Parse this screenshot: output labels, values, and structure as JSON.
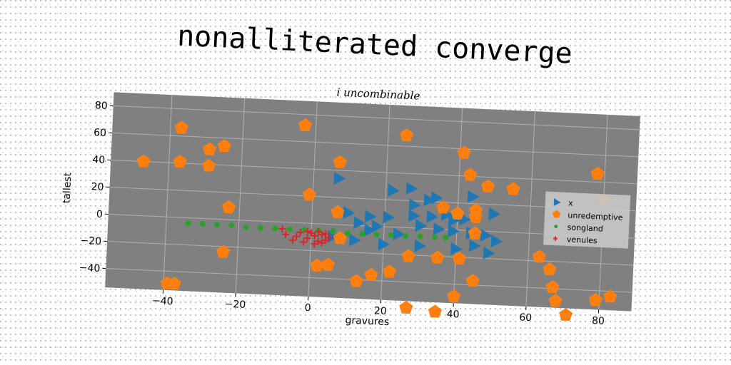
{
  "title": "nonalliterated converge",
  "chart_data": {
    "type": "scatter",
    "title": "i uncombinable",
    "xlabel": "gravures",
    "ylabel": "tallest",
    "xlim": [
      -56,
      89
    ],
    "ylim": [
      -54,
      90
    ],
    "xticks": [
      -40,
      -20,
      0,
      20,
      40,
      60,
      80
    ],
    "yticks": [
      -40,
      -20,
      0,
      20,
      40,
      60,
      80
    ],
    "grid": true,
    "legend_position": "center-right",
    "plot_background": "#808080",
    "series": [
      {
        "name": "x",
        "marker": "triangle-right",
        "color": "#1f77b4",
        "points": [
          [
            7,
            34
          ],
          [
            22,
            27
          ],
          [
            27,
            29
          ],
          [
            32,
            21
          ],
          [
            28,
            17
          ],
          [
            34,
            23
          ],
          [
            44,
            25
          ],
          [
            10,
            9
          ],
          [
            16,
            7
          ],
          [
            21,
            7
          ],
          [
            13,
            2
          ],
          [
            18,
            0
          ],
          [
            28,
            9
          ],
          [
            33,
            9
          ],
          [
            30,
            2
          ],
          [
            37,
            11
          ],
          [
            39,
            7
          ],
          [
            42,
            8
          ],
          [
            45,
            10
          ],
          [
            50,
            13
          ],
          [
            35,
            0
          ],
          [
            39,
            -1
          ],
          [
            44,
            -2
          ],
          [
            48,
            -3
          ],
          [
            51,
            -7
          ],
          [
            45,
            -11
          ],
          [
            40,
            -14
          ],
          [
            30,
            -13
          ],
          [
            20,
            -13
          ],
          [
            12,
            -11
          ],
          [
            6,
            -9
          ],
          [
            16,
            -3
          ],
          [
            24,
            -5
          ],
          [
            49,
            -16
          ]
        ]
      },
      {
        "name": "unredemptive",
        "marker": "pentagon",
        "color": "#ff7f0e",
        "points": [
          [
            -37,
            66
          ],
          [
            -47,
            40
          ],
          [
            -37,
            41
          ],
          [
            -29,
            51
          ],
          [
            -25,
            54
          ],
          [
            -29,
            39
          ],
          [
            -23,
            9
          ],
          [
            -24,
            -24
          ],
          [
            -39,
            -49
          ],
          [
            -37,
            -49
          ],
          [
            -3,
            72
          ],
          [
            -1,
            21
          ],
          [
            2,
            -31
          ],
          [
            5,
            -30
          ],
          [
            5,
            -30
          ],
          [
            7,
            46
          ],
          [
            7,
            9
          ],
          [
            8,
            -10
          ],
          [
            25,
            68
          ],
          [
            41,
            57
          ],
          [
            43,
            41
          ],
          [
            48,
            33
          ],
          [
            55,
            32
          ],
          [
            36,
            16
          ],
          [
            40,
            12
          ],
          [
            45,
            10
          ],
          [
            45,
            15
          ],
          [
            45,
            -2
          ],
          [
            35,
            -21
          ],
          [
            41,
            -21
          ],
          [
            27,
            -21
          ],
          [
            22,
            -33
          ],
          [
            17,
            -36
          ],
          [
            13,
            -41
          ],
          [
            40,
            -49
          ],
          [
            45,
            -37
          ],
          [
            27,
            -59
          ],
          [
            35,
            -61
          ],
          [
            63,
            -17
          ],
          [
            66,
            -26
          ],
          [
            67,
            -39
          ],
          [
            68,
            -49
          ],
          [
            71,
            -59
          ],
          [
            79,
            -47
          ],
          [
            83,
            -44
          ],
          [
            78,
            46
          ],
          [
            80,
            27
          ]
        ]
      },
      {
        "name": "songland",
        "marker": "circle",
        "color": "#2ca02c",
        "points": [
          [
            -34,
            -4
          ],
          [
            -30,
            -4
          ],
          [
            -26,
            -4
          ],
          [
            -22,
            -4
          ],
          [
            -18,
            -5
          ],
          [
            -14,
            -5
          ],
          [
            -10,
            -5
          ],
          [
            -6,
            -5
          ],
          [
            -2,
            -5
          ],
          [
            2,
            -5
          ],
          [
            6,
            -5
          ],
          [
            10,
            -6
          ],
          [
            14,
            -6
          ],
          [
            18,
            -6
          ],
          [
            22,
            -6
          ],
          [
            26,
            -6
          ],
          [
            30,
            -6
          ],
          [
            34,
            -6
          ],
          [
            37,
            -6
          ]
        ]
      },
      {
        "name": "venules",
        "marker": "plus",
        "color": "#d62728",
        "points": [
          [
            -8,
            -5
          ],
          [
            -7,
            -9
          ],
          [
            -5,
            -13
          ],
          [
            -3,
            -7
          ],
          [
            -1,
            -11
          ],
          [
            1,
            -9
          ],
          [
            2,
            -13
          ],
          [
            3,
            -8
          ],
          [
            4,
            -12
          ],
          [
            5,
            -10
          ],
          [
            0,
            -7
          ],
          [
            -2,
            -14
          ],
          [
            1,
            -15
          ],
          [
            3,
            -14
          ],
          [
            -4,
            -10
          ],
          [
            -1,
            -6
          ],
          [
            2,
            -6
          ],
          [
            4,
            -7
          ]
        ]
      }
    ]
  }
}
